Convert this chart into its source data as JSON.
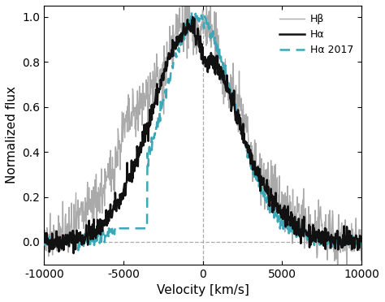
{
  "xlim": [
    -10000,
    10000
  ],
  "ylim": [
    -0.1,
    1.05
  ],
  "xlabel": "Velocity [km/s]",
  "ylabel": "Normalized flux",
  "xticks": [
    -10000,
    -5000,
    0,
    5000,
    10000
  ],
  "yticks": [
    0.0,
    0.2,
    0.4,
    0.6,
    0.8,
    1.0
  ],
  "vline_x": 0,
  "hline_y": 0,
  "legend_labels": [
    "Hβ",
    "Hα",
    "Hα 2017"
  ],
  "hbeta_color": "#aaaaaa",
  "halpha_color": "#111111",
  "halpha2017_color": "#3ba8b8",
  "background_color": "#ffffff",
  "grid_color": "#aaaaaa",
  "linewidth_hbeta": 1.0,
  "linewidth_halpha": 1.8,
  "linewidth_halpha2017": 1.8,
  "seed": 42
}
